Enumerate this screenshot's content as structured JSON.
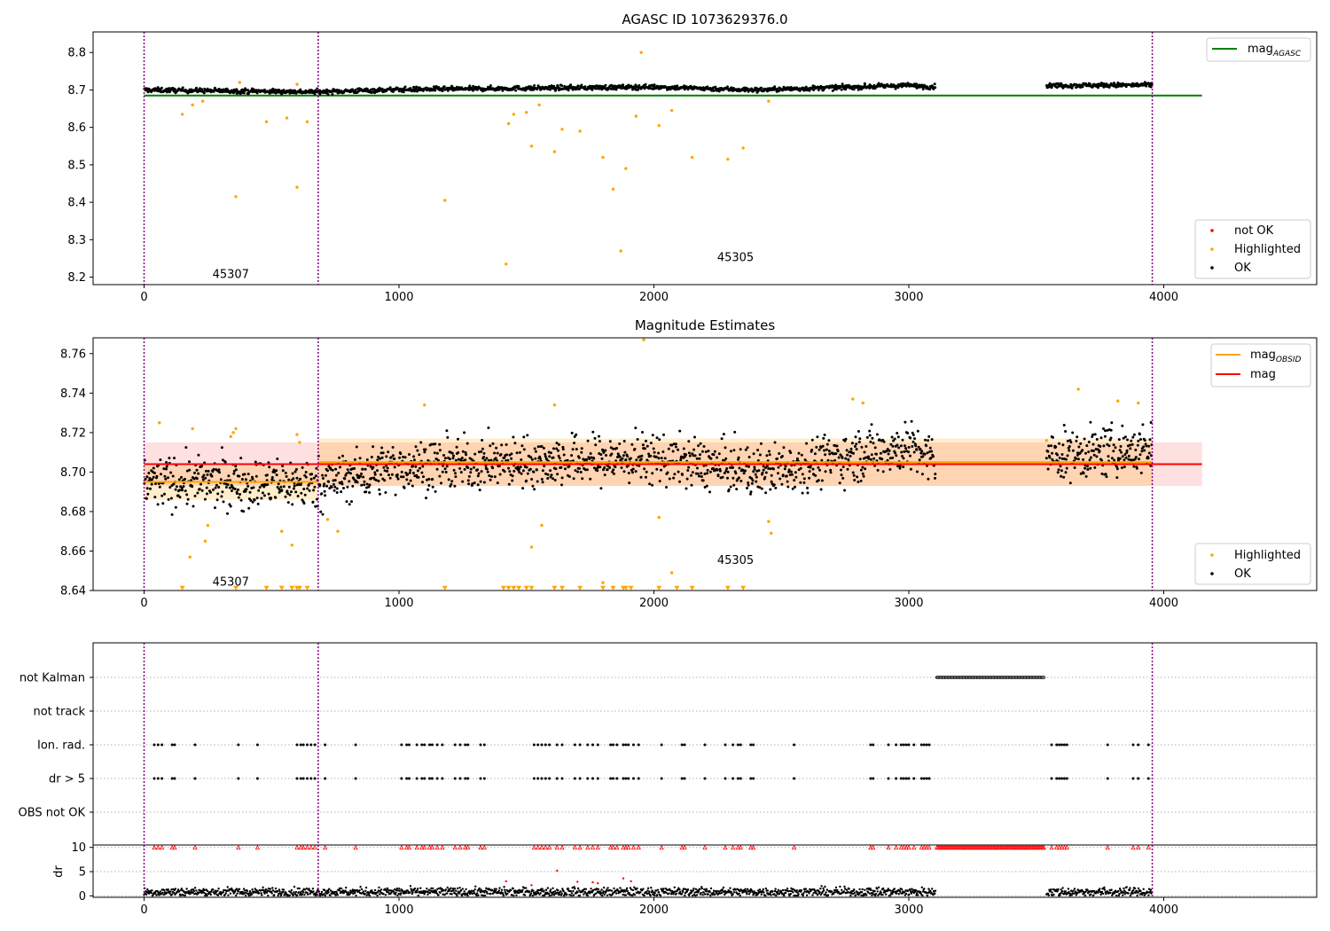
{
  "chart_data": [
    {
      "id": "p1",
      "type": "scatter",
      "title": "AGASC ID 1073629376.0",
      "xlabel": "",
      "ylabel": "",
      "xlim": [
        -200,
        4600
      ],
      "ylim": [
        8.18,
        8.855
      ],
      "xticks": [
        0,
        1000,
        2000,
        3000,
        4000
      ],
      "yticks": [
        8.2,
        8.3,
        8.4,
        8.5,
        8.6,
        8.7,
        8.8
      ],
      "grid": false,
      "obsid_boundaries": [
        0,
        683,
        3955
      ],
      "obsid_labels": [
        {
          "text": "45307",
          "x": 340,
          "y": 8.2
        },
        {
          "text": "45305",
          "x": 2320,
          "y": 8.245
        }
      ],
      "reference_lines": [
        {
          "name": "mag_AGASC",
          "legend_main": "mag",
          "legend_sub": "AGASC",
          "y": 8.685,
          "x_range": [
            0,
            4150
          ],
          "color": "#008000"
        }
      ],
      "series": [
        {
          "name": "not OK",
          "color": "#ff0000",
          "values": []
        },
        {
          "name": "Highlighted",
          "color": "#ffa500",
          "x": [
            150,
            190,
            230,
            360,
            480,
            560,
            600,
            640,
            1180,
            1420,
            1430,
            1450,
            1500,
            1520,
            1550,
            1610,
            1640,
            1710,
            1800,
            1840,
            1870,
            1890,
            1930,
            1950,
            2020,
            2070,
            2150,
            2290,
            2350,
            2450,
            375,
            600
          ],
          "y": [
            8.635,
            8.66,
            8.67,
            8.415,
            8.615,
            8.625,
            8.44,
            8.615,
            8.405,
            8.235,
            8.61,
            8.635,
            8.64,
            8.55,
            8.66,
            8.535,
            8.595,
            8.59,
            8.52,
            8.435,
            8.27,
            8.49,
            8.63,
            8.8,
            8.605,
            8.645,
            8.52,
            8.515,
            8.545,
            8.67,
            8.72,
            8.715
          ]
        },
        {
          "name": "OK",
          "color": "#000000",
          "trend": [
            [
              0,
              8.7
            ],
            [
              683,
              8.695
            ],
            [
              1000,
              8.701
            ],
            [
              2000,
              8.708
            ],
            [
              2400,
              8.7
            ],
            [
              3000,
              8.712
            ],
            [
              3105,
              8.708
            ],
            [
              3540,
              8.712
            ],
            [
              3955,
              8.713
            ]
          ],
          "x_segments": [
            [
              0,
              3105
            ],
            [
              3540,
              3955
            ]
          ],
          "scatter": 0.007
        }
      ],
      "legends": [
        {
          "position": "upper right",
          "entries": [
            "mag_AGASC"
          ]
        },
        {
          "position": "lower right",
          "entries": [
            "not OK",
            "Highlighted",
            "OK"
          ]
        }
      ]
    },
    {
      "id": "p2",
      "type": "scatter",
      "title": "Magnitude Estimates",
      "xlabel": "",
      "ylabel": "",
      "xlim": [
        -200,
        4600
      ],
      "ylim": [
        8.64,
        8.768
      ],
      "xticks": [
        0,
        1000,
        2000,
        3000,
        4000
      ],
      "yticks": [
        8.64,
        8.66,
        8.68,
        8.7,
        8.72,
        8.74,
        8.76
      ],
      "grid": false,
      "obsid_boundaries": [
        0,
        683,
        3955
      ],
      "obsid_labels": [
        {
          "text": "45307",
          "x": 340,
          "y": 8.643
        },
        {
          "text": "45305",
          "x": 2320,
          "y": 8.654
        }
      ],
      "bands": [
        {
          "name": "mag",
          "y_low": 8.693,
          "y_high": 8.715,
          "x_range": [
            0,
            4150
          ],
          "color": "#ff0000",
          "alpha": 0.12
        },
        {
          "name": "mag_OBSID 45307",
          "y_low": 8.686,
          "y_high": 8.703,
          "x_range": [
            0,
            683
          ],
          "color": "#ffa500",
          "alpha": 0.2
        },
        {
          "name": "mag_OBSID 45305",
          "y_low": 8.693,
          "y_high": 8.717,
          "x_range": [
            683,
            3955
          ],
          "color": "#ffa500",
          "alpha": 0.2
        }
      ],
      "reference_lines": [
        {
          "name": "mag_OBSID",
          "legend_main": "mag",
          "legend_sub": "OBSID",
          "color": "#ffa500",
          "segments": [
            {
              "x_range": [
                0,
                683
              ],
              "y": 8.695
            },
            {
              "x_range": [
                683,
                3955
              ],
              "y": 8.705
            }
          ]
        },
        {
          "name": "mag",
          "legend_main": "mag",
          "legend_sub": "",
          "color": "#ff0000",
          "segments": [
            {
              "x_range": [
                0,
                4150
              ],
              "y": 8.704
            }
          ]
        }
      ],
      "series": [
        {
          "name": "Highlighted",
          "color": "#ffa500",
          "x": [
            60,
            180,
            190,
            240,
            250,
            340,
            350,
            360,
            540,
            580,
            600,
            610,
            720,
            760,
            1100,
            1520,
            1560,
            1610,
            1800,
            1960,
            2020,
            2070,
            2450,
            2460,
            2780,
            2820,
            3540,
            3665,
            3820,
            3900
          ],
          "y": [
            8.725,
            8.657,
            8.722,
            8.665,
            8.673,
            8.718,
            8.72,
            8.722,
            8.67,
            8.663,
            8.719,
            8.715,
            8.676,
            8.67,
            8.734,
            8.662,
            8.673,
            8.734,
            8.644,
            8.767,
            8.677,
            8.649,
            8.675,
            8.669,
            8.737,
            8.735,
            8.716,
            8.742,
            8.736,
            8.735
          ]
        },
        {
          "name": "Highlighted (below range)",
          "color": "#ffa500",
          "marker": "triangle-down",
          "x": [
            150,
            360,
            480,
            540,
            580,
            600,
            610,
            640,
            1180,
            1410,
            1430,
            1450,
            1470,
            1500,
            1520,
            1610,
            1640,
            1710,
            1800,
            1840,
            1880,
            1890,
            1910,
            2020,
            2090,
            2150,
            2290,
            2350
          ],
          "y_at": 8.641
        },
        {
          "name": "OK",
          "color": "#000000",
          "trend": [
            [
              0,
              8.695
            ],
            [
              683,
              8.694
            ],
            [
              1000,
              8.703
            ],
            [
              2000,
              8.707
            ],
            [
              2400,
              8.7
            ],
            [
              3000,
              8.713
            ],
            [
              3105,
              8.705
            ],
            [
              3540,
              8.708
            ],
            [
              3955,
              8.712
            ]
          ],
          "x_segments": [
            [
              0,
              3105
            ],
            [
              3540,
              3955
            ]
          ],
          "scatter": 0.014
        }
      ],
      "legends": [
        {
          "position": "upper right",
          "entries": [
            "mag_OBSID",
            "mag"
          ]
        },
        {
          "position": "lower right",
          "entries": [
            "Highlighted",
            "OK"
          ]
        }
      ]
    },
    {
      "id": "p3",
      "type": "scatter",
      "title": "",
      "xlim": [
        -200,
        4600
      ],
      "categories": [
        "not Kalman",
        "not track",
        "Ion. rad.",
        "dr > 5",
        "OBS not OK"
      ],
      "grid": "horizontal dotted",
      "obsid_boundaries": [
        0,
        683,
        3955
      ],
      "flags": {
        "not Kalman": {
          "x_range": [
            3110,
            3530
          ]
        },
        "not track": {
          "x": []
        },
        "Ion. rad.": {
          "x": [
            40,
            55,
            70,
            110,
            120,
            200,
            370,
            445,
            600,
            615,
            625,
            640,
            655,
            670,
            710,
            830,
            1010,
            1030,
            1040,
            1070,
            1090,
            1100,
            1120,
            1130,
            1150,
            1170,
            1220,
            1240,
            1260,
            1270,
            1320,
            1335,
            1530,
            1545,
            1560,
            1575,
            1590,
            1620,
            1640,
            1690,
            1710,
            1740,
            1760,
            1780,
            1830,
            1840,
            1855,
            1880,
            1890,
            1900,
            1920,
            1940,
            2030,
            2110,
            2120,
            2200,
            2280,
            2310,
            2330,
            2340,
            2380,
            2390,
            2550,
            2850,
            2860,
            2920,
            2950,
            2970,
            2980,
            2990,
            3000,
            3020,
            3050,
            3060,
            3070,
            3080,
            3560,
            3580,
            3590,
            3600,
            3610,
            3620,
            3780,
            3880,
            3900,
            3940
          ]
        },
        "dr > 5": {
          "x": [
            40,
            55,
            70,
            110,
            120,
            200,
            370,
            445,
            600,
            615,
            625,
            640,
            655,
            670,
            710,
            830,
            1010,
            1030,
            1040,
            1070,
            1090,
            1100,
            1120,
            1130,
            1150,
            1170,
            1220,
            1240,
            1260,
            1270,
            1320,
            1335,
            1530,
            1545,
            1560,
            1575,
            1590,
            1620,
            1640,
            1690,
            1710,
            1740,
            1760,
            1780,
            1830,
            1840,
            1855,
            1880,
            1890,
            1900,
            1920,
            1940,
            2030,
            2110,
            2120,
            2200,
            2280,
            2310,
            2330,
            2340,
            2380,
            2390,
            2550,
            2850,
            2860,
            2920,
            2950,
            2970,
            2980,
            2990,
            3000,
            3020,
            3050,
            3060,
            3070,
            3080,
            3560,
            3580,
            3590,
            3600,
            3610,
            3620,
            3780,
            3880,
            3900,
            3940
          ]
        },
        "OBS not OK": {
          "x": []
        }
      }
    },
    {
      "id": "p4",
      "type": "scatter",
      "title": "",
      "ylabel": "dr",
      "xlim": [
        -200,
        4600
      ],
      "ylim": [
        -0.3,
        10.5
      ],
      "yticks": [
        0,
        5,
        10
      ],
      "xticks": [
        0,
        1000,
        2000,
        3000,
        4000
      ],
      "grid": "horizontal dotted",
      "obsid_boundaries": [
        0,
        683,
        3955
      ],
      "series": [
        {
          "name": "dr",
          "color": "#000000",
          "mean": 0.8,
          "scatter": 0.45,
          "x_segments": [
            [
              0,
              3105
            ],
            [
              3540,
              3955
            ]
          ]
        },
        {
          "name": "dr > 5 (clipped)",
          "color": "#ff0000",
          "marker": "triangle-up",
          "y_at": 10,
          "x_dense": [
            3110,
            3530
          ]
        },
        {
          "name": "dr outliers",
          "color": "#ff0000",
          "x": [
            1420,
            1520,
            1620,
            1700,
            1760,
            1780,
            1880,
            1910
          ],
          "y": [
            3.0,
            2.2,
            5.2,
            2.9,
            2.8,
            2.6,
            3.6,
            3.0
          ]
        }
      ]
    }
  ],
  "legend_labels": {
    "not_ok": "not OK",
    "highlighted": "Highlighted",
    "ok": "OK",
    "mag": "mag",
    "agasc_sub": "AGASC",
    "obsid_sub": "OBSID"
  },
  "colors": {
    "ok": "#000000",
    "highlighted": "#ffa500",
    "not_ok": "#ff0000",
    "agasc_line": "#008000",
    "mag_line": "#ff0000",
    "obsid_line": "#ffa500",
    "boundary": "#800080"
  }
}
